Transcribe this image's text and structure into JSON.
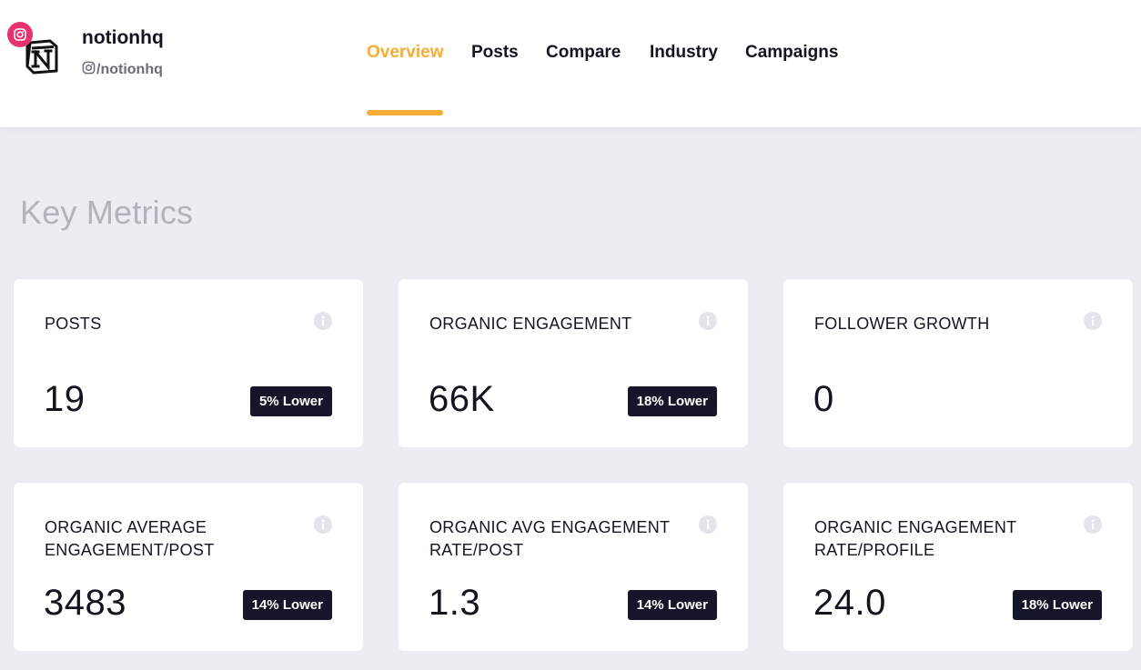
{
  "account": {
    "name": "notionhq",
    "handle": "/notionhq"
  },
  "nav": {
    "tabs": [
      "Overview",
      "Posts",
      "Compare",
      "Industry",
      "Campaigns"
    ],
    "active_tab": "Overview"
  },
  "section": {
    "title": "Key Metrics"
  },
  "metrics": [
    {
      "label": "POSTS",
      "value": "19",
      "badge": "5% Lower"
    },
    {
      "label": "ORGANIC ENGAGEMENT",
      "value": "66K",
      "badge": "18% Lower"
    },
    {
      "label": "FOLLOWER GROWTH",
      "value": "0",
      "badge": ""
    },
    {
      "label": "ORGANIC AVERAGE ENGAGEMENT/POST",
      "value": "3483",
      "badge": "14% Lower"
    },
    {
      "label": "ORGANIC AVG ENGAGEMENT RATE/POST",
      "value": "1.3",
      "badge": "14% Lower"
    },
    {
      "label": "ORGANIC ENGAGEMENT RATE/PROFILE",
      "value": "24.0",
      "badge": "18% Lower"
    }
  ],
  "colors": {
    "accent": "#f5ad35",
    "instagram": "#e8326f",
    "badge_bg": "#16162b",
    "page_bg": "#ecedf2"
  },
  "icons": {
    "logo": "notion-logo-icon",
    "platform": "instagram-icon",
    "info": "info-icon"
  }
}
